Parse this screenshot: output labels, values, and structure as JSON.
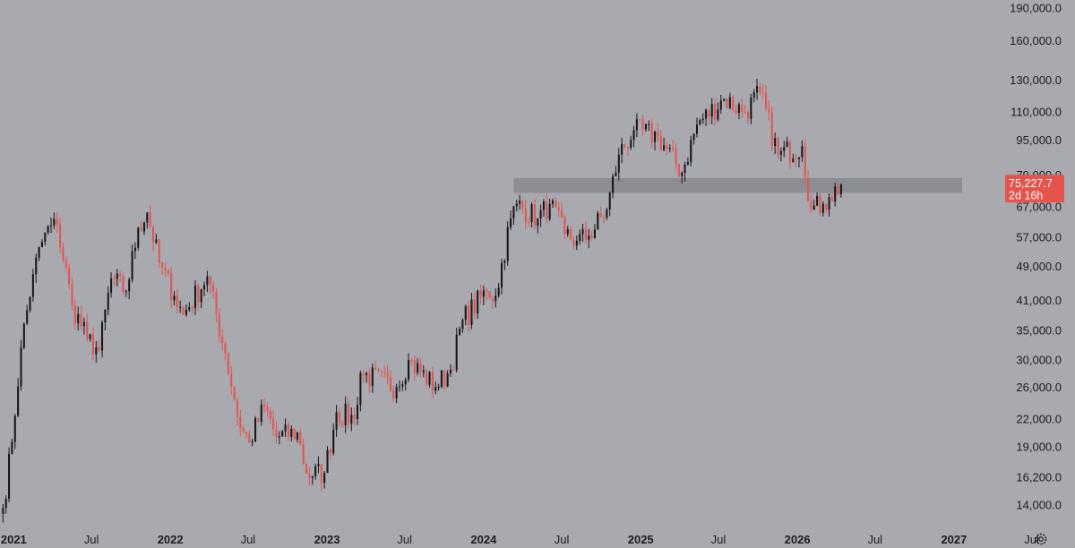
{
  "chart_data": {
    "type": "candlestick",
    "title": "",
    "xlabel": "",
    "ylabel": "",
    "y_scale": "log",
    "ylim": [
      12700,
      198000
    ],
    "xlim": [
      "2020-11-30",
      "2027-10-10"
    ],
    "grid": false,
    "colors": {
      "up": "#17171c",
      "down": "#e5544b",
      "zone": "#8a8b91",
      "badge": "#e5544b",
      "background": "#a8aab0"
    },
    "y_ticks": [
      {
        "value": 14000,
        "label": "14,000.0"
      },
      {
        "value": 16200,
        "label": "16,200.0"
      },
      {
        "value": 19000,
        "label": "19,000.0"
      },
      {
        "value": 22000,
        "label": "22,000.0"
      },
      {
        "value": 26000,
        "label": "26,000.0"
      },
      {
        "value": 30000,
        "label": "30,000.0"
      },
      {
        "value": 35000,
        "label": "35,000.0"
      },
      {
        "value": 41000,
        "label": "41,000.0"
      },
      {
        "value": 49000,
        "label": "49,000.0"
      },
      {
        "value": 57000,
        "label": "57,000.0"
      },
      {
        "value": 67000,
        "label": "67,000.0"
      },
      {
        "value": 79000,
        "label": "79,000.0"
      },
      {
        "value": 95000,
        "label": "95,000.0"
      },
      {
        "value": 110000,
        "label": "110,000.0"
      },
      {
        "value": 130000,
        "label": "130,000.0"
      },
      {
        "value": 160000,
        "label": "160,000.0"
      },
      {
        "value": 190000,
        "label": "190,000.0"
      }
    ],
    "x_ticks": [
      {
        "date": "2021-01-01",
        "label": "2021",
        "bold": true
      },
      {
        "date": "2021-07-01",
        "label": "Jul",
        "bold": false
      },
      {
        "date": "2022-01-01",
        "label": "2022",
        "bold": true
      },
      {
        "date": "2022-07-01",
        "label": "Jul",
        "bold": false
      },
      {
        "date": "2023-01-01",
        "label": "2023",
        "bold": true
      },
      {
        "date": "2023-07-01",
        "label": "Jul",
        "bold": false
      },
      {
        "date": "2024-01-01",
        "label": "2024",
        "bold": true
      },
      {
        "date": "2024-07-01",
        "label": "Jul",
        "bold": false
      },
      {
        "date": "2025-01-01",
        "label": "2025",
        "bold": true
      },
      {
        "date": "2025-07-01",
        "label": "Jul",
        "bold": false
      },
      {
        "date": "2026-01-01",
        "label": "2026",
        "bold": true
      },
      {
        "date": "2026-07-01",
        "label": "Jul",
        "bold": false
      },
      {
        "date": "2027-01-01",
        "label": "2027",
        "bold": true
      },
      {
        "date": "2027-07-01",
        "label": "Jul",
        "bold": false
      }
    ],
    "zone": {
      "from_date": "2024-03-11",
      "to_date": "2027-01-20",
      "low": 72000,
      "high": 77800
    },
    "current_price": {
      "value": 75227.7,
      "label": "75,227.7",
      "countdown": "2d 16h"
    },
    "anchors": [
      [
        "2020-12-07",
        13800
      ],
      [
        "2020-12-28",
        19500
      ],
      [
        "2021-01-18",
        32000
      ],
      [
        "2021-02-15",
        47000
      ],
      [
        "2021-03-15",
        58500
      ],
      [
        "2021-04-12",
        61000
      ],
      [
        "2021-05-17",
        40000
      ],
      [
        "2021-06-21",
        33500
      ],
      [
        "2021-07-19",
        31500
      ],
      [
        "2021-08-16",
        46000
      ],
      [
        "2021-09-20",
        43000
      ],
      [
        "2021-10-18",
        60000
      ],
      [
        "2021-11-08",
        65000
      ],
      [
        "2021-12-06",
        50000
      ],
      [
        "2022-01-10",
        42000
      ],
      [
        "2022-01-31",
        38000
      ],
      [
        "2022-03-28",
        46500
      ],
      [
        "2022-05-09",
        31000
      ],
      [
        "2022-06-13",
        21000
      ],
      [
        "2022-07-04",
        19500
      ],
      [
        "2022-08-08",
        23500
      ],
      [
        "2022-09-05",
        20000
      ],
      [
        "2022-10-24",
        20500
      ],
      [
        "2022-11-14",
        16500
      ],
      [
        "2022-12-26",
        16600
      ],
      [
        "2023-01-23",
        22800
      ],
      [
        "2023-03-06",
        22000
      ],
      [
        "2023-03-20",
        28000
      ],
      [
        "2023-06-12",
        26000
      ],
      [
        "2023-07-10",
        30000
      ],
      [
        "2023-09-11",
        26000
      ],
      [
        "2023-10-16",
        28500
      ],
      [
        "2023-11-13",
        37000
      ],
      [
        "2024-01-08",
        43000
      ],
      [
        "2024-01-29",
        42000
      ],
      [
        "2024-03-04",
        63000
      ],
      [
        "2024-03-18",
        68000
      ],
      [
        "2024-05-06",
        63000
      ],
      [
        "2024-06-03",
        68000
      ],
      [
        "2024-07-08",
        58000
      ],
      [
        "2024-08-05",
        56000
      ],
      [
        "2024-09-02",
        57500
      ],
      [
        "2024-10-14",
        66000
      ],
      [
        "2024-11-11",
        88000
      ],
      [
        "2024-12-16",
        100000
      ],
      [
        "2025-02-10",
        97000
      ],
      [
        "2025-04-07",
        80000
      ],
      [
        "2025-05-12",
        103000
      ],
      [
        "2025-07-14",
        118000
      ],
      [
        "2025-09-01",
        110000
      ],
      [
        "2025-10-06",
        122000
      ],
      [
        "2025-11-17",
        88000
      ],
      [
        "2026-01-12",
        92000
      ],
      [
        "2026-02-02",
        66000
      ],
      [
        "2026-03-02",
        68000
      ],
      [
        "2026-03-16",
        70500
      ],
      [
        "2026-04-13",
        75227.7
      ]
    ]
  }
}
